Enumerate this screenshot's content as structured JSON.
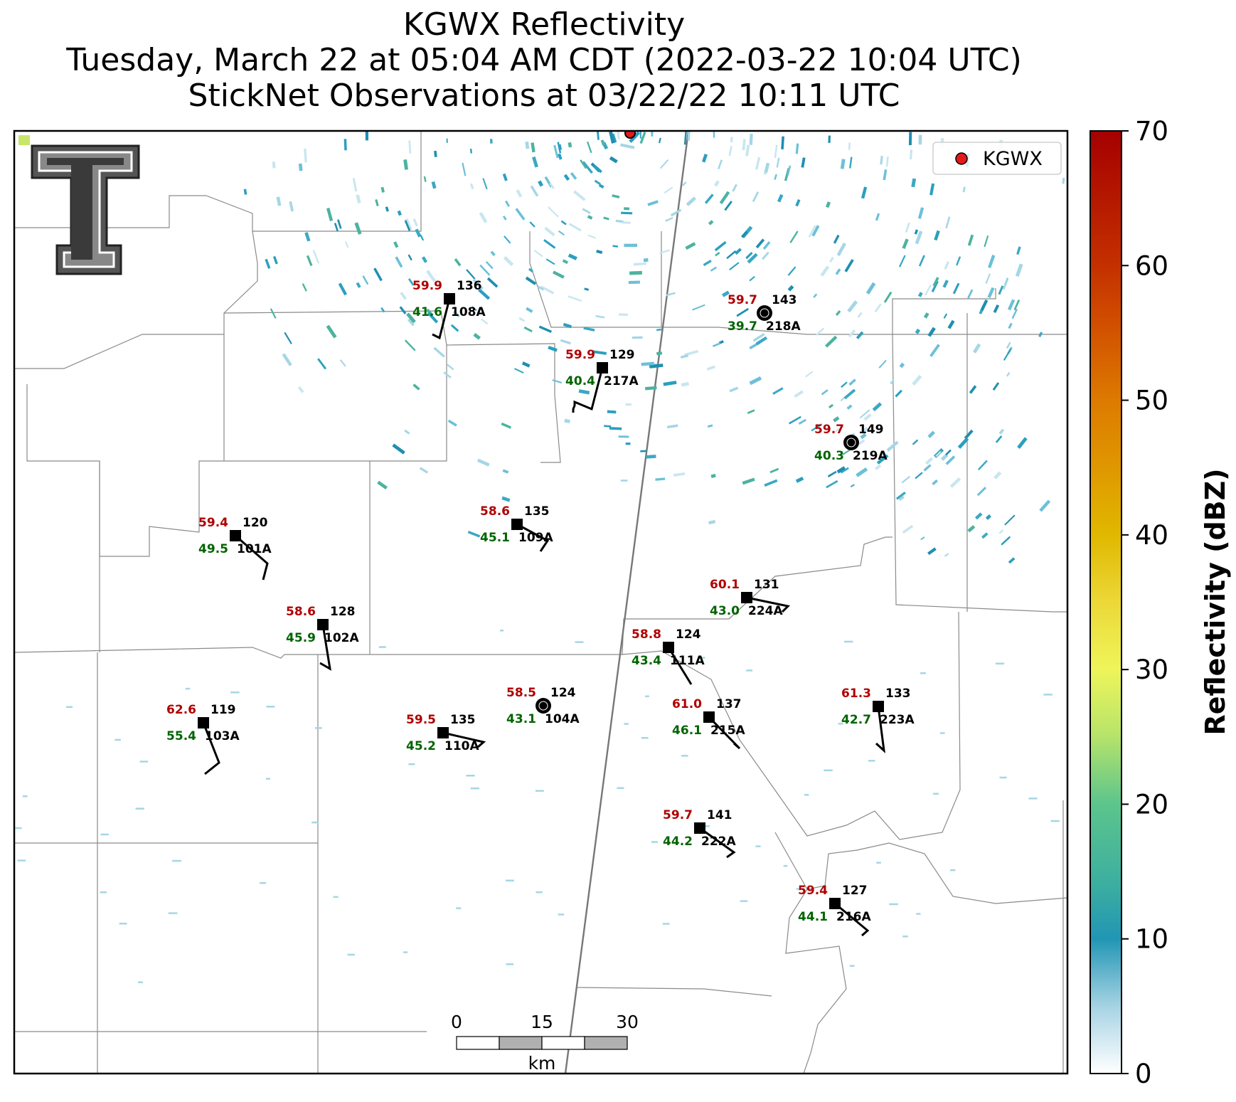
{
  "title": {
    "line1": "KGWX Reflectivity",
    "line2": "Tuesday, March 22 at 05:04 AM CDT (2022-03-22 10:04 UTC)",
    "line3": "StickNet Observations at 03/22/22 10:11 UTC"
  },
  "legend": {
    "label": "KGWX",
    "marker_color": "#e31a1c"
  },
  "colorbar": {
    "label": "Reflectivity (dBZ)",
    "ticks": [
      "0",
      "10",
      "20",
      "30",
      "40",
      "50",
      "60",
      "70"
    ],
    "colors": [
      "#ffffff",
      "#2196b4",
      "#5cc58c",
      "#eef55a",
      "#e0b800",
      "#dd7a00",
      "#c43000",
      "#a50000"
    ]
  },
  "scale_bar": {
    "labels": [
      "0",
      "15",
      "30"
    ],
    "unit": "km"
  },
  "logo": {
    "name": "texas-tech-double-t-logo"
  },
  "stations": [
    {
      "id": "108A",
      "temp": "59.9",
      "dew": "41.6",
      "dir": "136"
    },
    {
      "id": "218A",
      "temp": "59.7",
      "dew": "39.7",
      "dir": "143"
    },
    {
      "id": "217A",
      "temp": "59.9",
      "dew": "40.4",
      "dir": "129"
    },
    {
      "id": "219A",
      "temp": "59.7",
      "dew": "40.3",
      "dir": "149"
    },
    {
      "id": "101A",
      "temp": "59.4",
      "dew": "49.5",
      "dir": "120"
    },
    {
      "id": "109A",
      "temp": "58.6",
      "dew": "45.1",
      "dir": "135"
    },
    {
      "id": "224A",
      "temp": "60.1",
      "dew": "43.0",
      "dir": "131"
    },
    {
      "id": "102A",
      "temp": "58.6",
      "dew": "45.9",
      "dir": "128"
    },
    {
      "id": "111A",
      "temp": "58.8",
      "dew": "43.4",
      "dir": "124"
    },
    {
      "id": "103A",
      "temp": "62.6",
      "dew": "55.4",
      "dir": "119"
    },
    {
      "id": "110A",
      "temp": "59.5",
      "dew": "45.2",
      "dir": "135"
    },
    {
      "id": "104A",
      "temp": "58.5",
      "dew": "43.1",
      "dir": "124"
    },
    {
      "id": "215A",
      "temp": "61.0",
      "dew": "46.1",
      "dir": "137"
    },
    {
      "id": "223A",
      "temp": "61.3",
      "dew": "42.7",
      "dir": "133"
    },
    {
      "id": "222A",
      "temp": "59.7",
      "dew": "44.2",
      "dir": "141"
    },
    {
      "id": "216A",
      "temp": "59.4",
      "dew": "44.1",
      "dir": "127"
    }
  ]
}
